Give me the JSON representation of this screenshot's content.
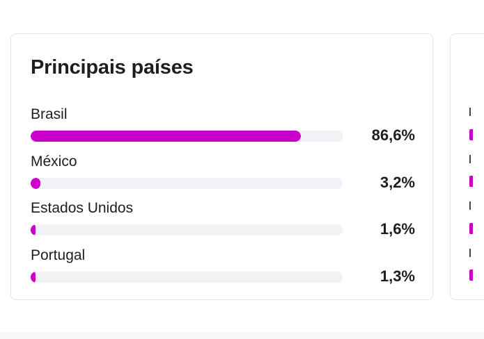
{
  "card": {
    "title": "Principais países",
    "rows": [
      {
        "label": "Brasil",
        "percent_text": "86,6%",
        "value": 86.6
      },
      {
        "label": "México",
        "percent_text": "3,2%",
        "value": 3.2
      },
      {
        "label": "Estados Unidos",
        "percent_text": "1,6%",
        "value": 1.6
      },
      {
        "label": "Portugal",
        "percent_text": "1,3%",
        "value": 1.3
      }
    ]
  },
  "colors": {
    "bar_fill": "#cc00cc",
    "bar_track": "#f0f2f5",
    "card_border": "#e4e6eb",
    "text": "#1c1e21"
  }
}
